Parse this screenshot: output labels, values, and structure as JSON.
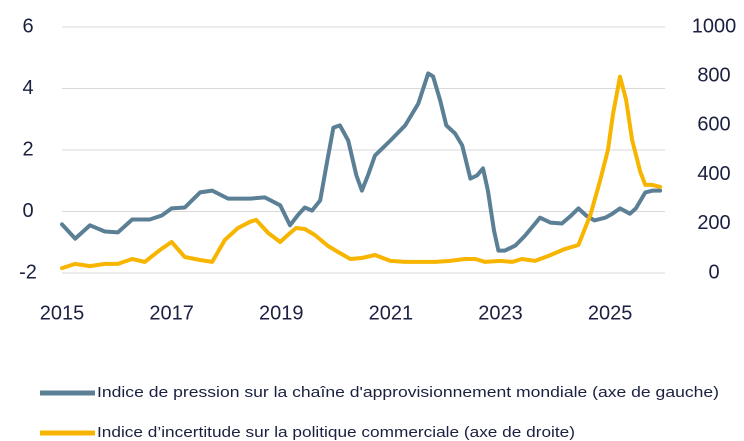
{
  "chart_data": {
    "type": "line",
    "xlim": [
      2015,
      2026
    ],
    "xticks": [
      2015,
      2017,
      2019,
      2021,
      2023,
      2025
    ],
    "ylim": [
      -2,
      6
    ],
    "yticks": [
      -2,
      0,
      2,
      4,
      6
    ],
    "y2lim": [
      0,
      1000
    ],
    "y2ticks": [
      0,
      200,
      400,
      600,
      800,
      1000
    ],
    "grid": true,
    "legend": "bottom",
    "series": [
      {
        "name": "Indice de pression sur la chaîne d'approvisionnement mondiale (axe de gauche)",
        "color": "#5b7f95",
        "axis": "y",
        "x": [
          2015.0,
          2015.24,
          2015.51,
          2015.78,
          2016.02,
          2016.28,
          2016.6,
          2016.82,
          2017.0,
          2017.24,
          2017.52,
          2017.74,
          2018.03,
          2018.43,
          2018.7,
          2018.98,
          2019.16,
          2019.31,
          2019.43,
          2019.56,
          2019.71,
          2019.84,
          2019.95,
          2020.07,
          2020.22,
          2020.37,
          2020.47,
          2020.58,
          2020.71,
          2020.99,
          2021.26,
          2021.5,
          2021.68,
          2021.77,
          2021.9,
          2022.01,
          2022.17,
          2022.3,
          2022.45,
          2022.57,
          2022.68,
          2022.77,
          2022.88,
          2022.96,
          2023.08,
          2023.27,
          2023.45,
          2023.72,
          2023.91,
          2024.12,
          2024.27,
          2024.42,
          2024.56,
          2024.71,
          2024.91,
          2025.04,
          2025.18,
          2025.36,
          2025.47,
          2025.64,
          2025.78,
          2025.91
        ],
        "values": [
          -0.42,
          -0.88,
          -0.45,
          -0.65,
          -0.68,
          -0.26,
          -0.26,
          -0.13,
          0.1,
          0.13,
          0.62,
          0.68,
          0.42,
          0.42,
          0.46,
          0.2,
          -0.45,
          -0.1,
          0.13,
          0.03,
          0.36,
          1.66,
          2.73,
          2.8,
          2.31,
          1.17,
          0.68,
          1.17,
          1.82,
          2.31,
          2.8,
          3.51,
          4.49,
          4.39,
          3.61,
          2.8,
          2.54,
          2.15,
          1.07,
          1.17,
          1.4,
          0.68,
          -0.62,
          -1.27,
          -1.27,
          -1.11,
          -0.78,
          -0.2,
          -0.36,
          -0.39,
          -0.16,
          0.1,
          -0.13,
          -0.29,
          -0.2,
          -0.07,
          0.1,
          -0.07,
          0.1,
          0.62,
          0.68,
          0.68
        ]
      },
      {
        "name": "Indice d’incertitude sur la politique commerciale (axe de droite)",
        "color": "#f7b500",
        "axis": "y2",
        "x": [
          2015.0,
          2015.24,
          2015.51,
          2015.78,
          2016.02,
          2016.28,
          2016.51,
          2016.79,
          2017.0,
          2017.24,
          2017.52,
          2017.74,
          2017.97,
          2018.21,
          2018.43,
          2018.54,
          2018.76,
          2018.98,
          2019.12,
          2019.27,
          2019.43,
          2019.61,
          2019.85,
          2020.04,
          2020.26,
          2020.47,
          2020.71,
          2020.99,
          2021.26,
          2021.53,
          2021.81,
          2022.08,
          2022.35,
          2022.54,
          2022.72,
          2022.99,
          2023.21,
          2023.39,
          2023.63,
          2023.87,
          2024.18,
          2024.42,
          2024.64,
          2024.82,
          2024.96,
          2025.05,
          2025.18,
          2025.29,
          2025.4,
          2025.55,
          2025.64,
          2025.77,
          2025.91
        ],
        "values": [
          20,
          37,
          28,
          37,
          37,
          57,
          45,
          94,
          126,
          65,
          53,
          45,
          134,
          183,
          208,
          216,
          163,
          126,
          155,
          183,
          179,
          155,
          110,
          85,
          57,
          61,
          73,
          49,
          45,
          45,
          45,
          49,
          57,
          57,
          45,
          49,
          45,
          57,
          49,
          69,
          98,
          114,
          236,
          379,
          501,
          643,
          798,
          704,
          541,
          411,
          358,
          358,
          350
        ]
      }
    ]
  }
}
